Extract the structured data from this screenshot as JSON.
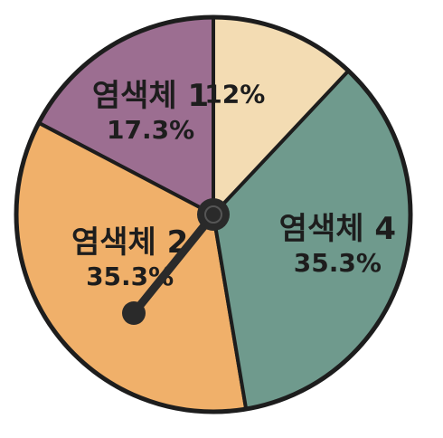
{
  "chart_data": {
    "type": "pie",
    "slices": [
      {
        "name": "염색체 1",
        "value": 17.3,
        "value_label": "17.3%",
        "color": "#9c6e91"
      },
      {
        "name": "염색체 2",
        "value": 35.3,
        "value_label": "35.3%",
        "color": "#f0b06a"
      },
      {
        "name": "염색체 4",
        "value": 35.3,
        "value_label": "35.3%",
        "color": "#6f9a8d"
      },
      {
        "name": "",
        "value": 12,
        "value_label": "12%",
        "color": "#f3dcb3"
      }
    ],
    "legend": "none",
    "outline_color": "#1d1d1d",
    "pointer_color": "#2a2a2a"
  }
}
